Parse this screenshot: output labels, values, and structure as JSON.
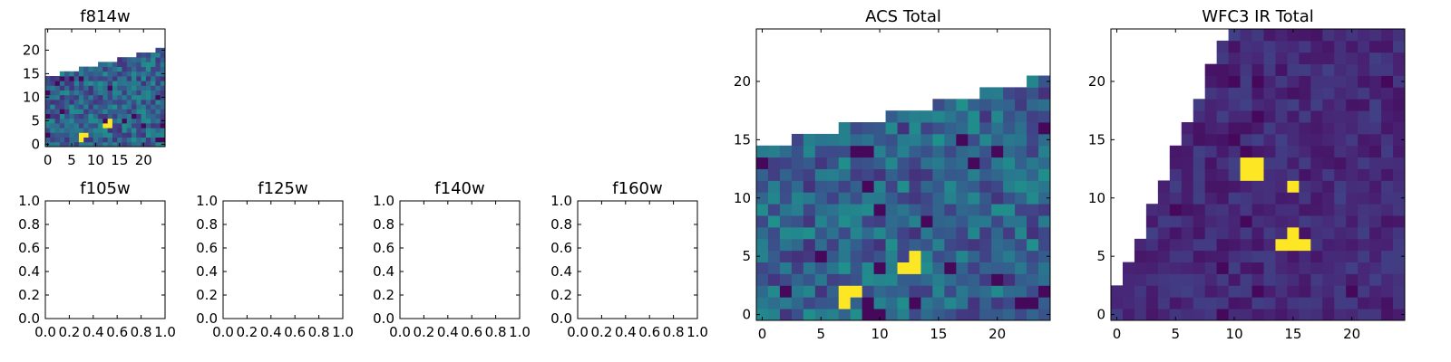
{
  "colormap": "viridis",
  "chart_data": [
    {
      "type": "heatmap",
      "title": "f814w",
      "xlim": [
        -0.5,
        24.5
      ],
      "ylim": [
        -0.5,
        24.5
      ],
      "xticks": [
        0,
        5,
        10,
        15,
        20
      ],
      "yticks": [
        0,
        5,
        10,
        15,
        20
      ],
      "xtick_labels": [
        "0",
        "5",
        "10",
        "15",
        "20"
      ],
      "ytick_labels": [
        "0",
        "5",
        "10",
        "15",
        "20"
      ],
      "grid_size": [
        25,
        25
      ],
      "coverage": "pixels below a stepped upper edge rising from y≈14 at x=0 to y≈20 at x=24; white (no data) above",
      "bright_pixels": [
        {
          "x": 7,
          "y": 1
        },
        {
          "x": 7,
          "y": 2
        },
        {
          "x": 8,
          "y": 2
        },
        {
          "x": 12,
          "y": 4
        },
        {
          "x": 13,
          "y": 4
        },
        {
          "x": 13,
          "y": 5
        }
      ]
    },
    {
      "type": "heatmap",
      "title": "f105w",
      "empty": true,
      "xlim": [
        0.0,
        1.0
      ],
      "ylim": [
        0.0,
        1.0
      ],
      "xtick_labels": [
        "0.0",
        "0.2",
        "0.4",
        "0.6",
        "0.8",
        "1.0"
      ],
      "ytick_labels": [
        "0.0",
        "0.2",
        "0.4",
        "0.6",
        "0.8",
        "1.0"
      ]
    },
    {
      "type": "heatmap",
      "title": "f125w",
      "empty": true,
      "xlim": [
        0.0,
        1.0
      ],
      "ylim": [
        0.0,
        1.0
      ],
      "xtick_labels": [
        "0.0",
        "0.2",
        "0.4",
        "0.6",
        "0.8",
        "1.0"
      ],
      "ytick_labels": [
        "0.0",
        "0.2",
        "0.4",
        "0.6",
        "0.8",
        "1.0"
      ]
    },
    {
      "type": "heatmap",
      "title": "f140w",
      "empty": true,
      "xlim": [
        0.0,
        1.0
      ],
      "ylim": [
        0.0,
        1.0
      ],
      "xtick_labels": [
        "0.0",
        "0.2",
        "0.4",
        "0.6",
        "0.8",
        "1.0"
      ],
      "ytick_labels": [
        "0.0",
        "0.2",
        "0.4",
        "0.6",
        "0.8",
        "1.0"
      ]
    },
    {
      "type": "heatmap",
      "title": "f160w",
      "empty": true,
      "xlim": [
        0.0,
        1.0
      ],
      "ylim": [
        0.0,
        1.0
      ],
      "xtick_labels": [
        "0.0",
        "0.2",
        "0.4",
        "0.6",
        "0.8",
        "1.0"
      ],
      "ytick_labels": [
        "0.0",
        "0.2",
        "0.4",
        "0.6",
        "0.8",
        "1.0"
      ]
    },
    {
      "type": "heatmap",
      "title": "ACS Total",
      "xlim": [
        -0.5,
        24.5
      ],
      "ylim": [
        -0.5,
        24.5
      ],
      "xticks": [
        0,
        5,
        10,
        15,
        20
      ],
      "yticks": [
        0,
        5,
        10,
        15,
        20
      ],
      "xtick_labels": [
        "0",
        "5",
        "10",
        "15",
        "20"
      ],
      "ytick_labels": [
        "0",
        "5",
        "10",
        "15",
        "20"
      ],
      "grid_size": [
        25,
        25
      ],
      "coverage": "pixels below a stepped upper edge rising from y≈14 at x=0 to y≈20 at x=24; white (no data) above",
      "bright_pixels": [
        {
          "x": 7,
          "y": 1
        },
        {
          "x": 7,
          "y": 2
        },
        {
          "x": 8,
          "y": 2
        },
        {
          "x": 12,
          "y": 4
        },
        {
          "x": 13,
          "y": 4
        },
        {
          "x": 13,
          "y": 5
        }
      ]
    },
    {
      "type": "heatmap",
      "title": "WFC3 IR Total",
      "xlim": [
        -0.5,
        24.5
      ],
      "ylim": [
        -0.5,
        24.5
      ],
      "xticks": [
        0,
        5,
        10,
        15,
        20
      ],
      "yticks": [
        0,
        5,
        10,
        15,
        20
      ],
      "xtick_labels": [
        "0",
        "5",
        "10",
        "15",
        "20"
      ],
      "ytick_labels": [
        "0",
        "5",
        "10",
        "15",
        "20"
      ],
      "grid_size": [
        25,
        25
      ],
      "coverage": "triangular footprint; left edge steps from x≈0 at y=0 to x≈10 at y=24; white (no data) at upper-left",
      "bright_pixels": [
        {
          "x": 11,
          "y": 12
        },
        {
          "x": 12,
          "y": 12
        },
        {
          "x": 11,
          "y": 13
        },
        {
          "x": 12,
          "y": 13
        },
        {
          "x": 15,
          "y": 11
        },
        {
          "x": 15,
          "y": 6
        },
        {
          "x": 16,
          "y": 6
        },
        {
          "x": 15,
          "y": 7
        },
        {
          "x": 14,
          "y": 6
        }
      ]
    }
  ]
}
